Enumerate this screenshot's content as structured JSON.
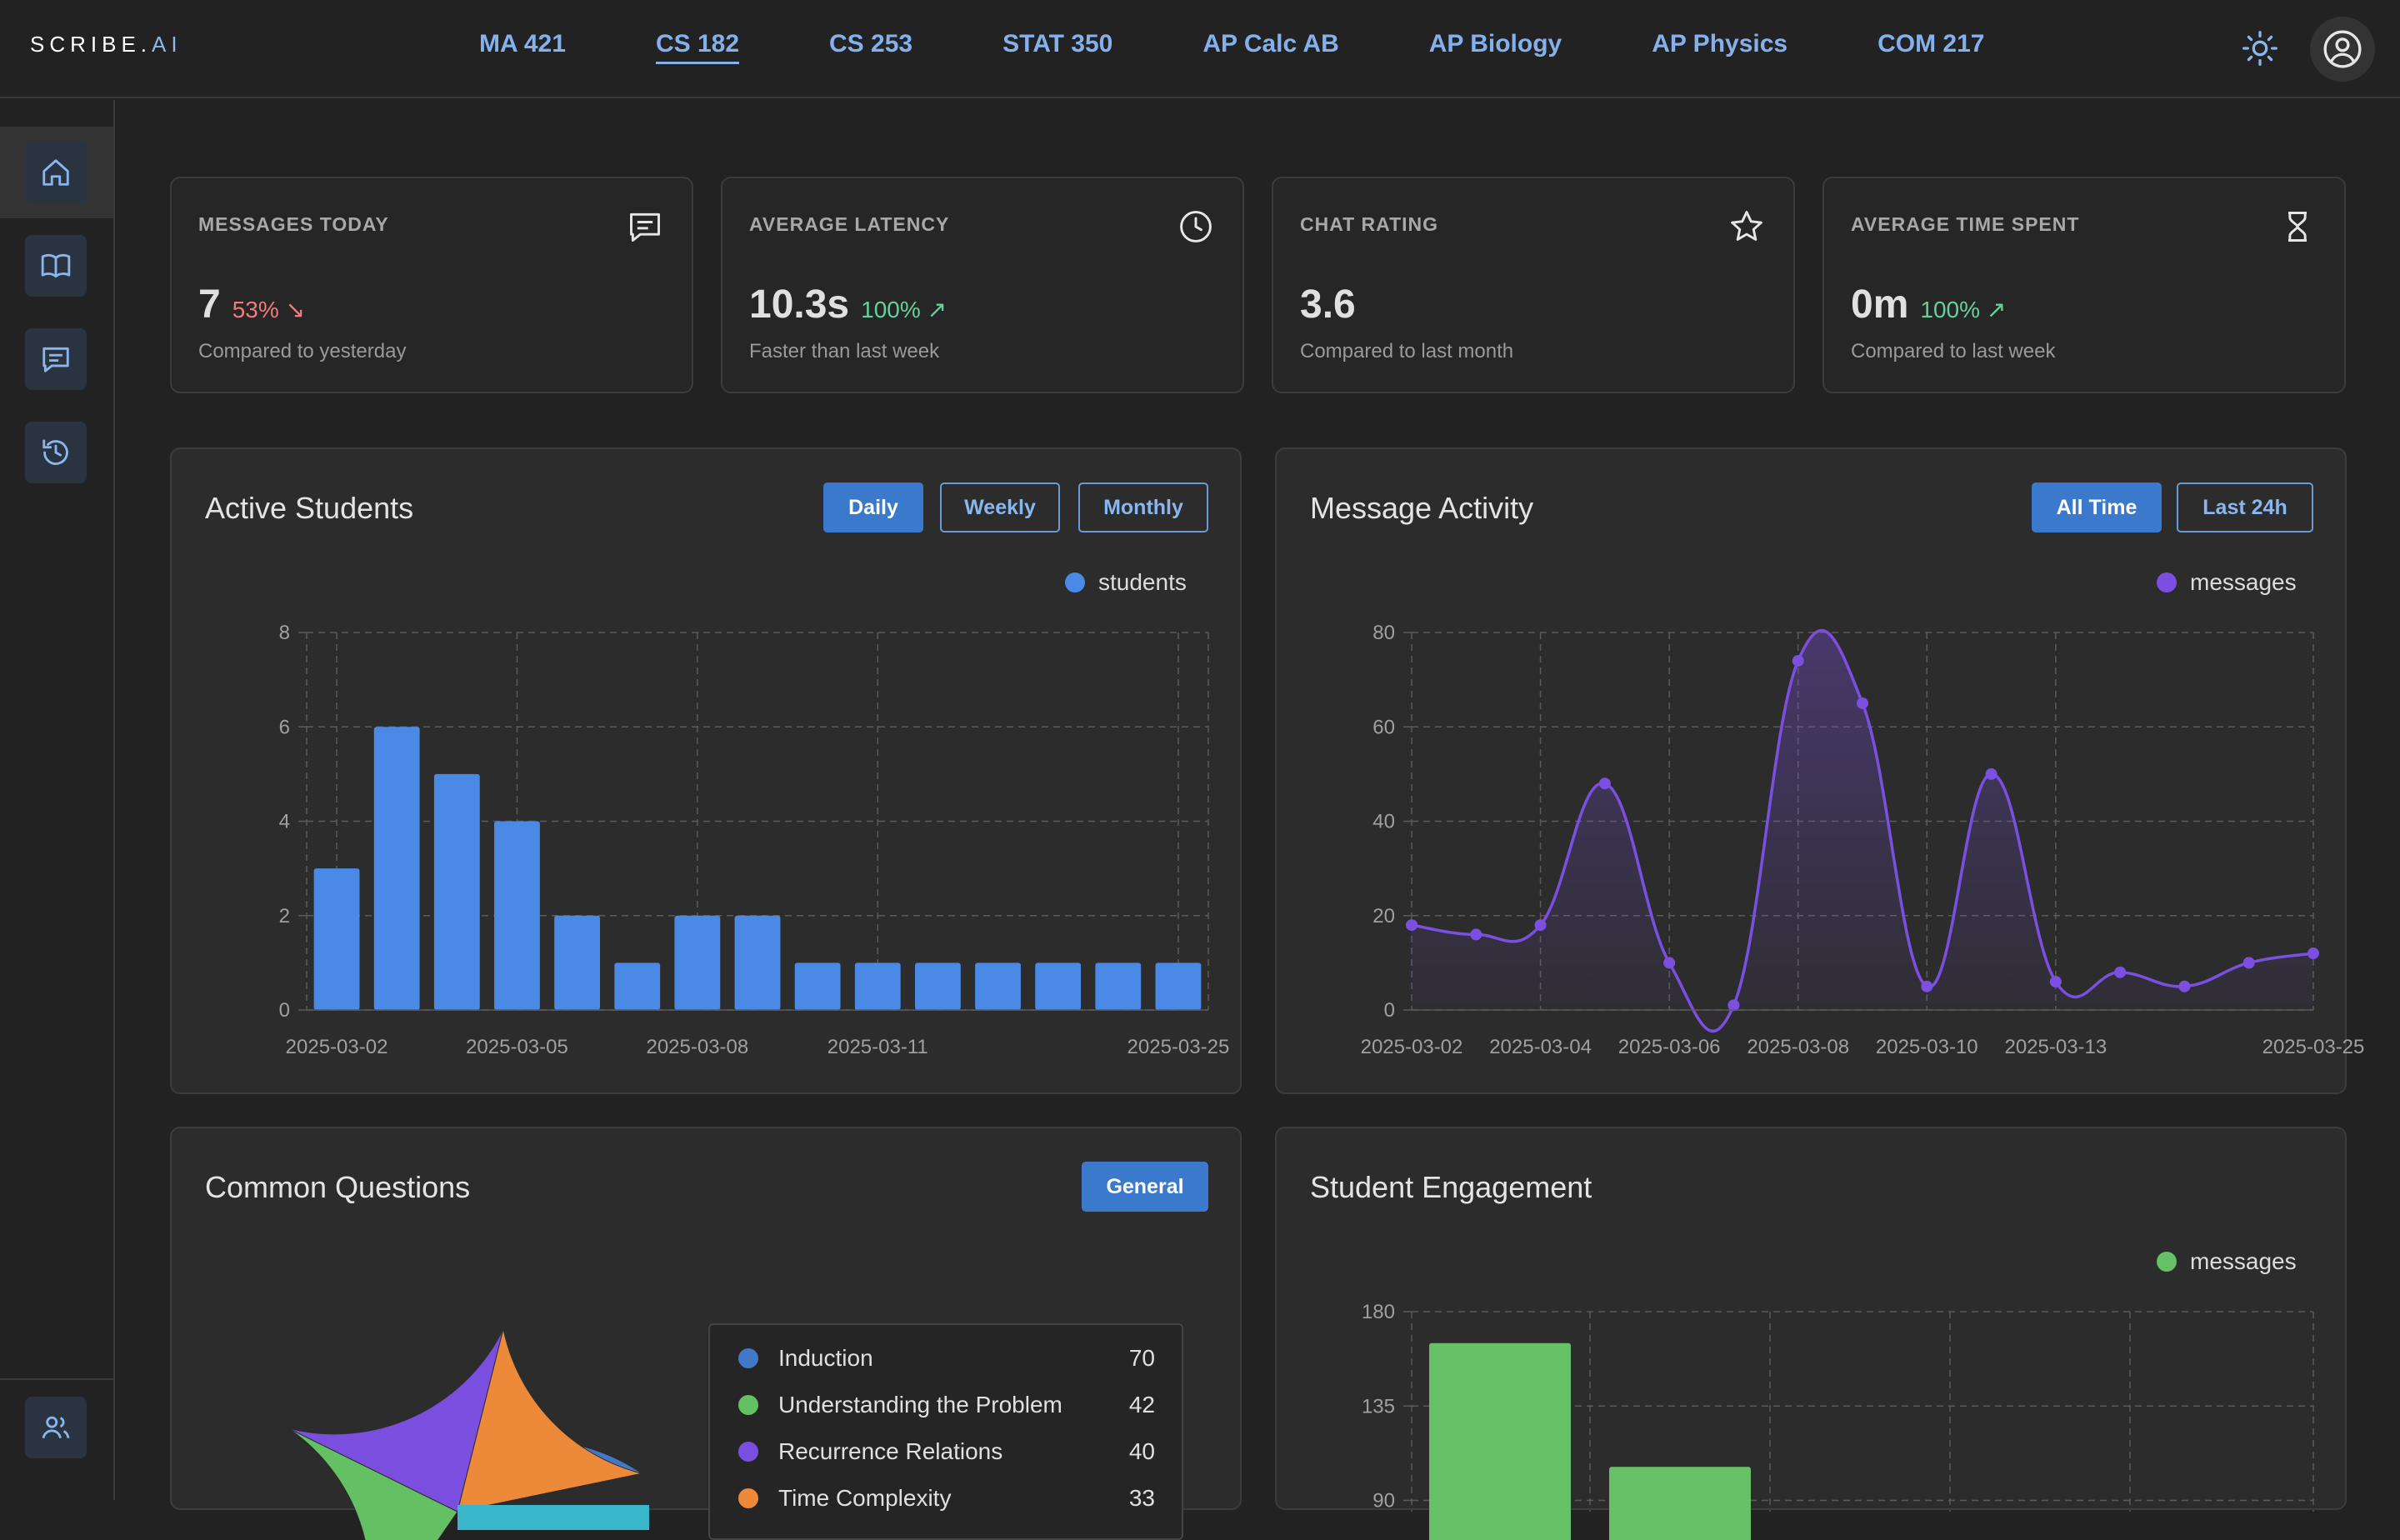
{
  "app": {
    "logo_main": "SCRIBE.",
    "logo_accent": "AI"
  },
  "courses": [
    {
      "label": "MA 421",
      "active": false
    },
    {
      "label": "CS 182",
      "active": true
    },
    {
      "label": "CS 253",
      "active": false
    },
    {
      "label": "STAT 350",
      "active": false
    },
    {
      "label": "AP Calc AB",
      "active": false
    },
    {
      "label": "AP Biology",
      "active": false
    },
    {
      "label": "AP Physics",
      "active": false
    },
    {
      "label": "COM 217",
      "active": false
    }
  ],
  "sidebar": {
    "items": [
      "home-icon",
      "book-icon",
      "chat-icon",
      "history-icon"
    ],
    "bottom": "users-icon"
  },
  "stats": [
    {
      "label": "MESSAGES TODAY",
      "value": "7",
      "change": "53% ↘",
      "direction": "down",
      "sub": "Compared to yesterday",
      "icon": "message-icon"
    },
    {
      "label": "AVERAGE LATENCY",
      "value": "10.3s",
      "change": "100% ↗",
      "direction": "up",
      "sub": "Faster than last week",
      "icon": "clock-icon"
    },
    {
      "label": "CHAT RATING",
      "value": "3.6",
      "change": "",
      "direction": "none",
      "sub": "Compared to last month",
      "icon": "star-icon"
    },
    {
      "label": "AVERAGE TIME SPENT",
      "value": "0m",
      "change": "100% ↗",
      "direction": "up",
      "sub": "Compared to last week",
      "icon": "hourglass-icon"
    }
  ],
  "active_students": {
    "title": "Active Students",
    "buttons": [
      {
        "label": "Daily",
        "active": true
      },
      {
        "label": "Weekly",
        "active": false
      },
      {
        "label": "Monthly",
        "active": false
      }
    ]
  },
  "message_activity": {
    "title": "Message Activity",
    "buttons": [
      {
        "label": "All Time",
        "active": true
      },
      {
        "label": "Last 24h",
        "active": false
      }
    ]
  },
  "common_questions": {
    "title": "Common Questions",
    "buttons": [
      {
        "label": "General",
        "active": true
      }
    ]
  },
  "student_engagement": {
    "title": "Student Engagement"
  },
  "colors": {
    "blue": "#4a8ae6",
    "purple": "#7b4fe0",
    "green": "#66c166",
    "accent": "#3a79cb"
  },
  "chart_data": [
    {
      "type": "bar",
      "legend": "students",
      "legend_placement": "top-right",
      "values": [
        3,
        6,
        5,
        4,
        2,
        1,
        2,
        2,
        1,
        1,
        1,
        1,
        1,
        1,
        1
      ],
      "x_tick_labels": [
        "2025-03-02",
        "2025-03-05",
        "2025-03-08",
        "2025-03-11",
        "2025-03-25"
      ],
      "y_ticks": [
        0,
        2,
        4,
        6,
        8
      ],
      "ylim": [
        0,
        8
      ],
      "grid": true
    },
    {
      "type": "line",
      "legend": "messages",
      "legend_placement": "top-right",
      "values": [
        18,
        16,
        18,
        48,
        10,
        1,
        74,
        65,
        5,
        50,
        6,
        8,
        5,
        10,
        12
      ],
      "x_tick_labels": [
        "2025-03-02",
        "2025-03-04",
        "2025-03-06",
        "2025-03-08",
        "2025-03-10",
        "2025-03-13",
        "2025-03-25"
      ],
      "y_ticks": [
        0,
        20,
        40,
        60,
        80
      ],
      "ylim": [
        0,
        80
      ],
      "grid": true
    },
    {
      "type": "pie",
      "slices": [
        {
          "label": "Induction",
          "value": 70,
          "color": "#4278c8"
        },
        {
          "label": "Understanding the Problem",
          "value": 42,
          "color": "#63c163"
        },
        {
          "label": "Recurrence Relations",
          "value": 40,
          "color": "#7a4ede"
        },
        {
          "label": "Time Complexity",
          "value": 33,
          "color": "#ed8a3a"
        }
      ]
    },
    {
      "type": "bar",
      "legend": "messages",
      "legend_placement": "top-right",
      "values": [
        165,
        106
      ],
      "y_ticks": [
        90,
        135,
        180
      ],
      "ylim": [
        0,
        180
      ],
      "grid": true
    }
  ]
}
